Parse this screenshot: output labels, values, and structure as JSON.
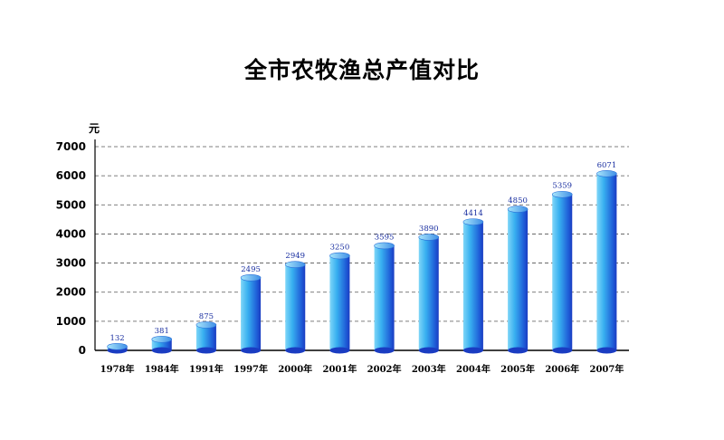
{
  "chart_data": {
    "type": "bar",
    "title": "全市农牧渔总产值对比",
    "ylabel": "元",
    "xlabel": "",
    "categories": [
      "1978年",
      "1984年",
      "1991年",
      "1997年",
      "2000年",
      "2001年",
      "2002年",
      "2003年",
      "2004年",
      "2005年",
      "2006年",
      "2007年"
    ],
    "values": [
      132,
      381,
      875,
      2495,
      2949,
      3250,
      3595,
      3890,
      4414,
      4850,
      5359,
      6071
    ],
    "ylim": [
      0,
      7000
    ],
    "yticks": [
      0,
      1000,
      2000,
      3000,
      4000,
      5000,
      6000,
      7000
    ],
    "grid": true,
    "legend": "none",
    "bar_color": "#38a8ec",
    "bar_dark": "#1a3fc8"
  }
}
